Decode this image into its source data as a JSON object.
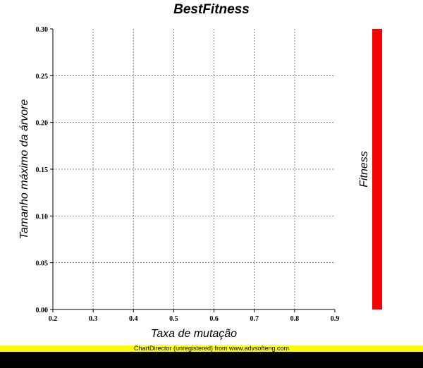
{
  "chart_data": {
    "type": "heatmap",
    "title": "BestFitness",
    "xlabel": "Taxa de mutação",
    "ylabel": "Tamanho máximo da árvore",
    "colorbar_label": "Fitness",
    "colorbar_color": "#ff0000",
    "xlim": [
      0.2,
      0.9
    ],
    "ylim": [
      0.0,
      0.3
    ],
    "x_ticks": [
      "0.2",
      "0.3",
      "0.4",
      "0.5",
      "0.6",
      "0.7",
      "0.8",
      "0.9"
    ],
    "y_ticks": [
      "0.00",
      "0.05",
      "0.10",
      "0.15",
      "0.20",
      "0.25",
      "0.30"
    ],
    "grid": true,
    "values": []
  },
  "footer": {
    "text": "ChartDirector (unregistered) from www.advsofteng.com",
    "band_color": "#ffff00"
  }
}
